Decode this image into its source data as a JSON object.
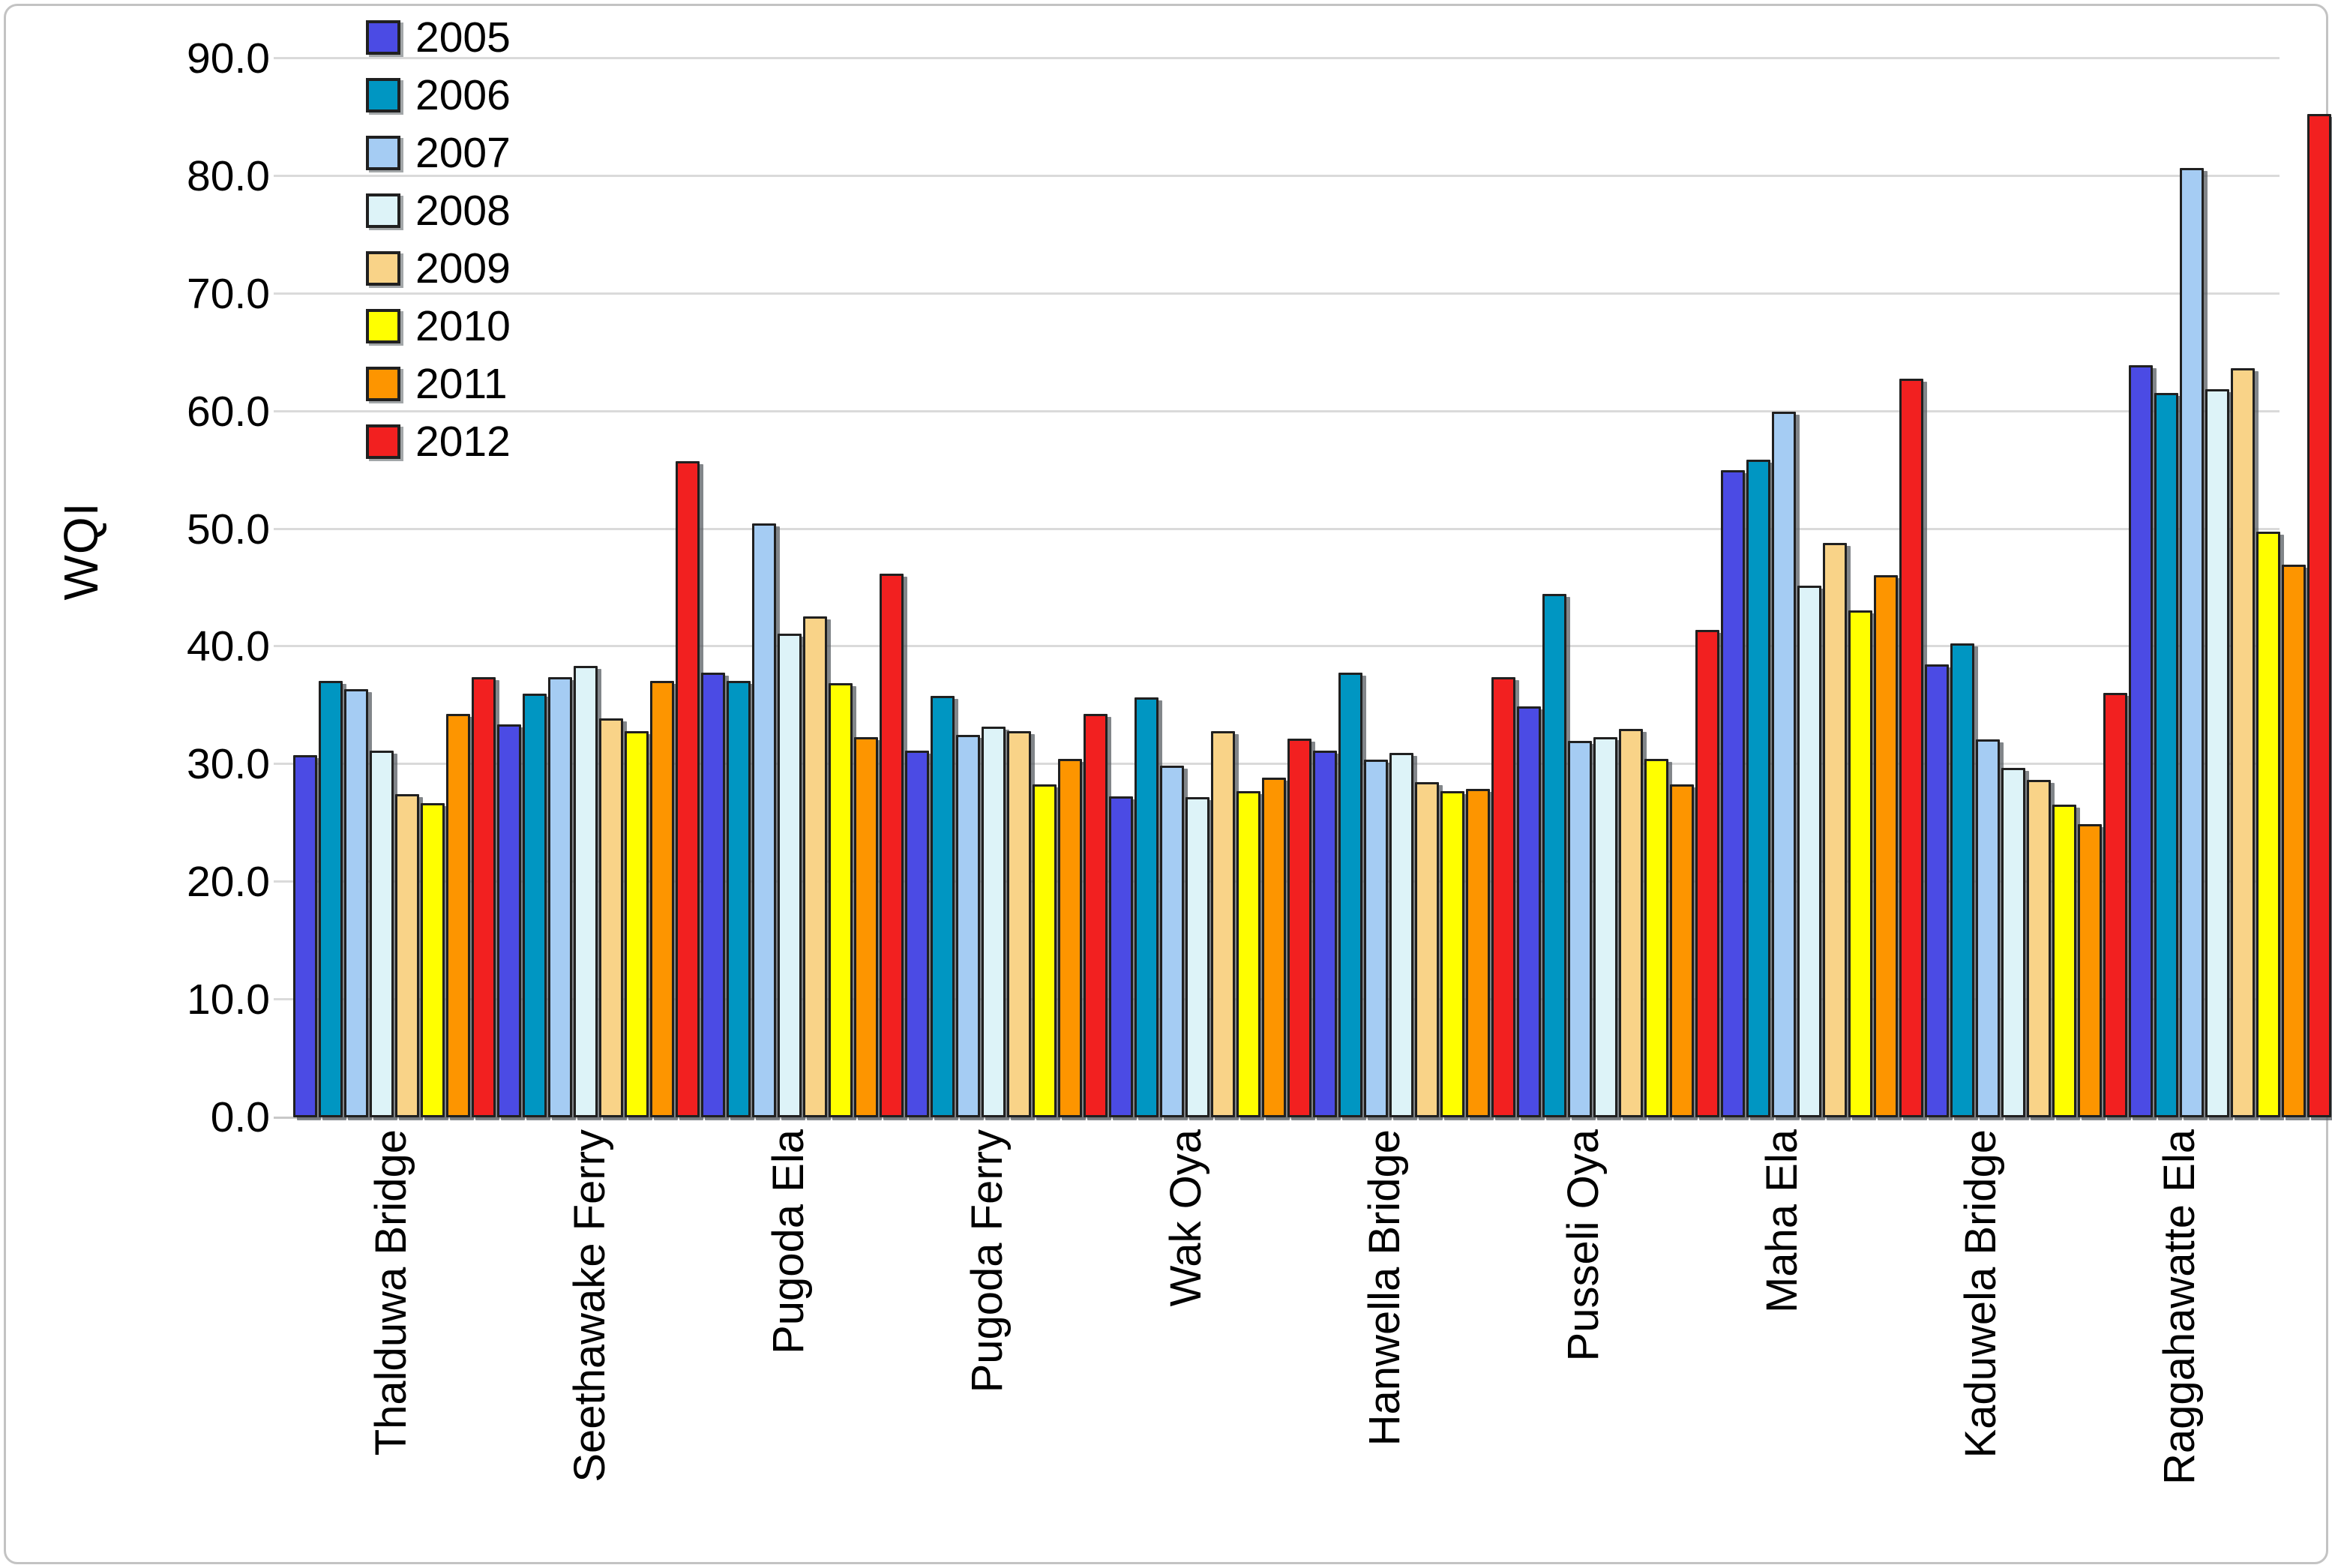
{
  "figure": {
    "background": "#FFFFFF",
    "border_color": "#C3C3C3"
  },
  "chart_data": {
    "type": "bar",
    "title": "",
    "xlabel": "",
    "ylabel": "WQI",
    "ylim": [
      0,
      90
    ],
    "ytick_step": 10,
    "ytick_labels": [
      "90.0",
      "80.0",
      "70.0",
      "60.0",
      "50.0",
      "40.0",
      "30.0",
      "20.0",
      "10.0",
      "0.0"
    ],
    "grid": true,
    "gridline_color": "#DADADA",
    "legend_position": "upper-left-inside",
    "bar_outline_color": "#202020",
    "bar_shadow_color": "#585E63",
    "categories": [
      "Thalduwa Bridge",
      "Seethawake Ferry",
      "Pugoda Ela",
      "Pugoda Ferry",
      "Wak Oya",
      "Hanwella Bridge",
      "Pusseli Oya",
      "Maha Ela",
      "Kaduwela Bridge",
      "Raggahawatte Ela"
    ],
    "series": [
      {
        "name": "2005",
        "color": "#4B4BE4",
        "values": [
          30.8,
          33.4,
          37.8,
          31.2,
          27.3,
          31.2,
          34.9,
          55.0,
          38.5,
          63.9
        ]
      },
      {
        "name": "2006",
        "color": "#0096C2",
        "values": [
          37.1,
          36.0,
          37.1,
          35.8,
          35.7,
          37.8,
          44.5,
          55.9,
          40.3,
          61.6
        ]
      },
      {
        "name": "2007",
        "color": "#A5CCF3",
        "values": [
          36.4,
          37.4,
          50.5,
          32.5,
          29.9,
          30.4,
          32.0,
          60.0,
          32.1,
          80.7
        ]
      },
      {
        "name": "2008",
        "color": "#DDF3F8",
        "values": [
          31.2,
          38.4,
          41.1,
          33.2,
          27.2,
          31.0,
          32.3,
          45.2,
          29.7,
          61.9
        ]
      },
      {
        "name": "2009",
        "color": "#F9D388",
        "values": [
          27.5,
          33.9,
          42.6,
          32.8,
          32.8,
          28.5,
          33.0,
          48.8,
          28.7,
          63.7
        ]
      },
      {
        "name": "2010",
        "color": "#FFFF00",
        "values": [
          26.7,
          32.8,
          36.9,
          28.3,
          27.7,
          27.7,
          30.5,
          43.1,
          26.6,
          49.8
        ]
      },
      {
        "name": "2011",
        "color": "#FD9500",
        "values": [
          34.3,
          37.1,
          32.3,
          30.5,
          28.9,
          27.9,
          28.3,
          46.1,
          24.9,
          47.0
        ]
      },
      {
        "name": "2012",
        "color": "#F22020",
        "values": [
          37.4,
          55.8,
          46.2,
          34.3,
          32.2,
          37.4,
          41.4,
          62.8,
          36.1,
          85.3
        ]
      }
    ]
  }
}
